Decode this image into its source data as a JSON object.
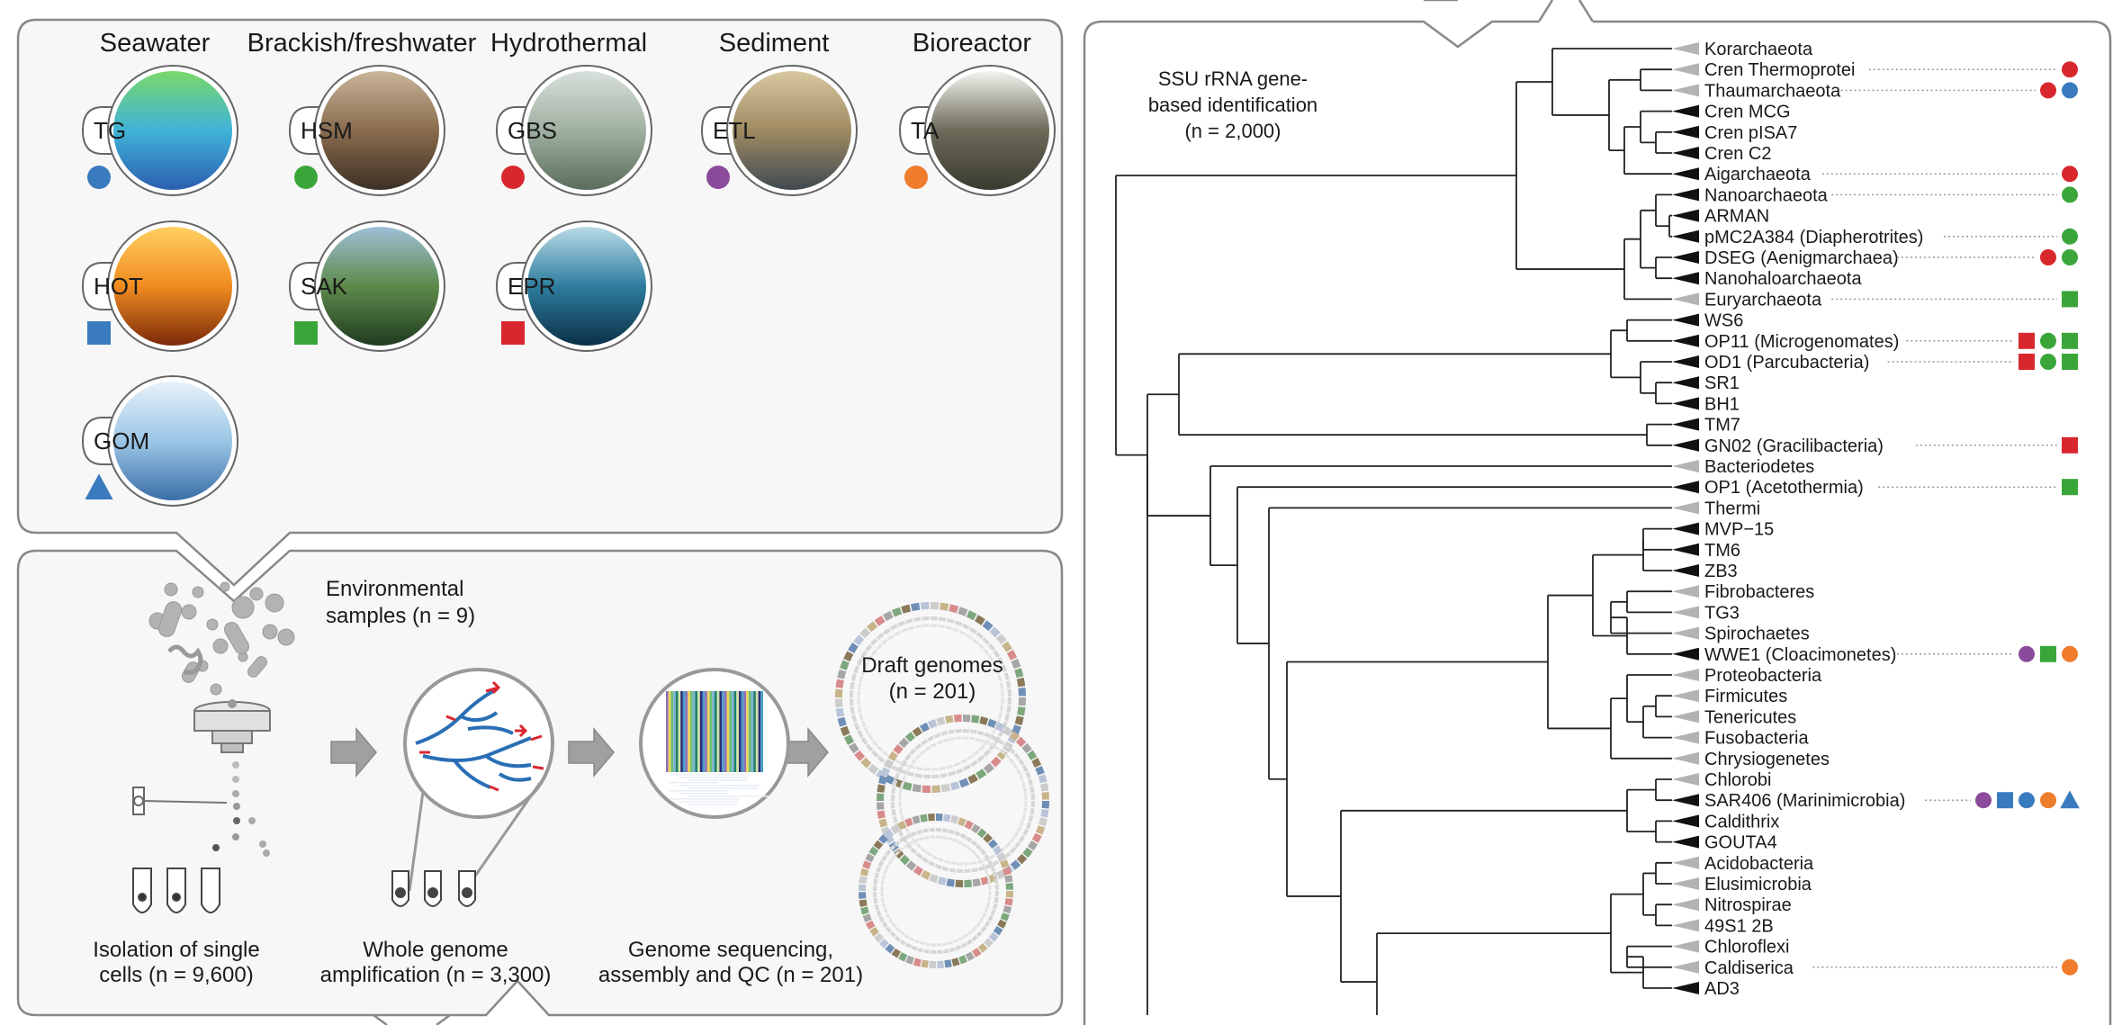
{
  "environments": [
    {
      "name": "Seawater",
      "sites": [
        {
          "code": "TG",
          "marker": "circle",
          "color": "#3a7bbf"
        },
        {
          "code": "HOT",
          "marker": "square",
          "color": "#3a7bbf"
        },
        {
          "code": "GOM",
          "marker": "triangle",
          "color": "#3a7bbf"
        }
      ]
    },
    {
      "name": "Brackish/freshwater",
      "sites": [
        {
          "code": "HSM",
          "marker": "circle",
          "color": "#3aa63a"
        },
        {
          "code": "SAK",
          "marker": "square",
          "color": "#3aa63a"
        }
      ]
    },
    {
      "name": "Hydrothermal",
      "sites": [
        {
          "code": "GBS",
          "marker": "circle",
          "color": "#d9272e"
        },
        {
          "code": "EPR",
          "marker": "square",
          "color": "#d9272e"
        }
      ]
    },
    {
      "name": "Sediment",
      "sites": [
        {
          "code": "ETL",
          "marker": "circle",
          "color": "#8b4a9c"
        }
      ]
    },
    {
      "name": "Bioreactor",
      "sites": [
        {
          "code": "TA",
          "marker": "circle",
          "color": "#ef7d2d"
        }
      ]
    }
  ],
  "workflow": {
    "env_samples": [
      "Environmental",
      "samples (n = 9)"
    ],
    "isolation": [
      "Isolation of single",
      "cells (n = 9,600)"
    ],
    "amplification": [
      "Whole genome",
      "amplification (n = 3,300)"
    ],
    "sequencing": [
      "Genome sequencing,",
      "assembly and QC (n = 201)"
    ],
    "draft": [
      "Draft genomes",
      "(n = 201)"
    ]
  },
  "tree": {
    "title": [
      "SSU rRNA gene-",
      "based identification",
      "(n = 2,000)"
    ],
    "leaves": [
      {
        "label": "Korarchaeota",
        "tri": "gray",
        "markers": []
      },
      {
        "label": "Cren Thermoprotei",
        "tri": "gray",
        "markers": [
          "GBS"
        ]
      },
      {
        "label": "Thaumarchaeota",
        "tri": "gray",
        "markers": [
          "GBS",
          "TG"
        ]
      },
      {
        "label": "Cren MCG",
        "tri": "black",
        "markers": []
      },
      {
        "label": "Cren pISA7",
        "tri": "black",
        "markers": []
      },
      {
        "label": "Cren C2",
        "tri": "black",
        "markers": []
      },
      {
        "label": "Aigarchaeota",
        "tri": "black",
        "markers": [
          "GBS"
        ]
      },
      {
        "label": "Nanoarchaeota",
        "tri": "black",
        "markers": [
          "HSM"
        ]
      },
      {
        "label": "ARMAN",
        "tri": "black",
        "markers": []
      },
      {
        "label": "pMC2A384 (Diapherotrites)",
        "tri": "black",
        "markers": [
          "HSM"
        ]
      },
      {
        "label": "DSEG (Aenigmarchaea)",
        "tri": "black",
        "markers": [
          "GBS",
          "HSM"
        ]
      },
      {
        "label": "Nanohaloarchaeota",
        "tri": "black",
        "markers": []
      },
      {
        "label": "Euryarchaeota",
        "tri": "gray",
        "markers": [
          "SAK"
        ]
      },
      {
        "label": "WS6",
        "tri": "black",
        "markers": []
      },
      {
        "label": "OP11 (Microgenomates)",
        "tri": "black",
        "markers": [
          "EPR",
          "HSM",
          "SAK"
        ]
      },
      {
        "label": "OD1 (Parcubacteria)",
        "tri": "black",
        "markers": [
          "EPR",
          "HSM",
          "SAK"
        ]
      },
      {
        "label": "SR1",
        "tri": "black",
        "markers": []
      },
      {
        "label": "BH1",
        "tri": "black",
        "markers": []
      },
      {
        "label": "TM7",
        "tri": "black",
        "markers": []
      },
      {
        "label": "GN02 (Gracilibacteria)",
        "tri": "black",
        "markers": [
          "EPR"
        ]
      },
      {
        "label": "Bacteriodetes",
        "tri": "gray",
        "markers": []
      },
      {
        "label": "OP1 (Acetothermia)",
        "tri": "black",
        "markers": [
          "SAK"
        ]
      },
      {
        "label": "Thermi",
        "tri": "gray",
        "markers": []
      },
      {
        "label": "MVP−15",
        "tri": "black",
        "markers": []
      },
      {
        "label": "TM6",
        "tri": "black",
        "markers": []
      },
      {
        "label": "ZB3",
        "tri": "black",
        "markers": []
      },
      {
        "label": "Fibrobacteres",
        "tri": "gray",
        "markers": []
      },
      {
        "label": "TG3",
        "tri": "gray",
        "markers": []
      },
      {
        "label": "Spirochaetes",
        "tri": "gray",
        "markers": []
      },
      {
        "label": "WWE1 (Cloacimonetes)",
        "tri": "black",
        "markers": [
          "ETL",
          "SAK",
          "TA"
        ]
      },
      {
        "label": "Proteobacteria",
        "tri": "gray",
        "markers": []
      },
      {
        "label": "Firmicutes",
        "tri": "gray",
        "markers": []
      },
      {
        "label": "Tenericutes",
        "tri": "gray",
        "markers": []
      },
      {
        "label": "Fusobacteria",
        "tri": "gray",
        "markers": []
      },
      {
        "label": "Chrysiogenetes",
        "tri": "gray",
        "markers": []
      },
      {
        "label": "Chlorobi",
        "tri": "gray",
        "markers": []
      },
      {
        "label": "SAR406 (Marinimicrobia)",
        "tri": "black",
        "markers": [
          "ETL",
          "HOT",
          "TG",
          "TA",
          "GOM"
        ]
      },
      {
        "label": "Caldithrix",
        "tri": "black",
        "markers": []
      },
      {
        "label": "GOUTA4",
        "tri": "black",
        "markers": []
      },
      {
        "label": "Acidobacteria",
        "tri": "gray",
        "markers": []
      },
      {
        "label": "Elusimicrobia",
        "tri": "gray",
        "markers": []
      },
      {
        "label": "Nitrospirae",
        "tri": "gray",
        "markers": []
      },
      {
        "label": "49S1 2B",
        "tri": "gray",
        "markers": []
      },
      {
        "label": "Chloroflexi",
        "tri": "gray",
        "markers": []
      },
      {
        "label": "Caldiserica",
        "tri": "gray",
        "markers": [
          "TA"
        ]
      },
      {
        "label": "AD3",
        "tri": "black",
        "markers": []
      }
    ]
  }
}
